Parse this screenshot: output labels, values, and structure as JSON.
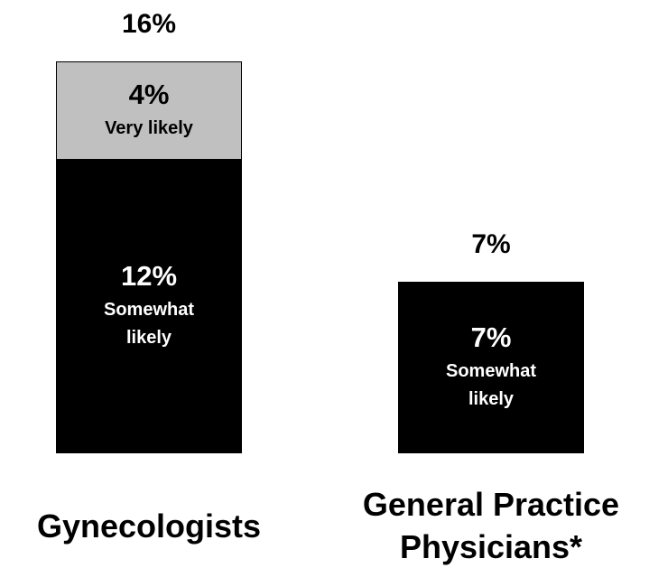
{
  "chart_data": {
    "type": "stacked_bar",
    "categories": [
      "Gynecologists",
      "General Practice Physicians*"
    ],
    "series": [
      {
        "name": "Somewhat likely",
        "color": "#000000",
        "label_color": "#ffffff",
        "values": [
          12,
          7
        ],
        "value_labels": [
          "12%",
          "7%"
        ]
      },
      {
        "name": "Very likely",
        "color": "#c0c0c0",
        "label_color": "#000000",
        "values": [
          4,
          null
        ],
        "value_labels": [
          "4%",
          null
        ]
      }
    ],
    "totals": [
      16,
      7
    ],
    "total_labels": [
      "16%",
      "7%"
    ]
  }
}
